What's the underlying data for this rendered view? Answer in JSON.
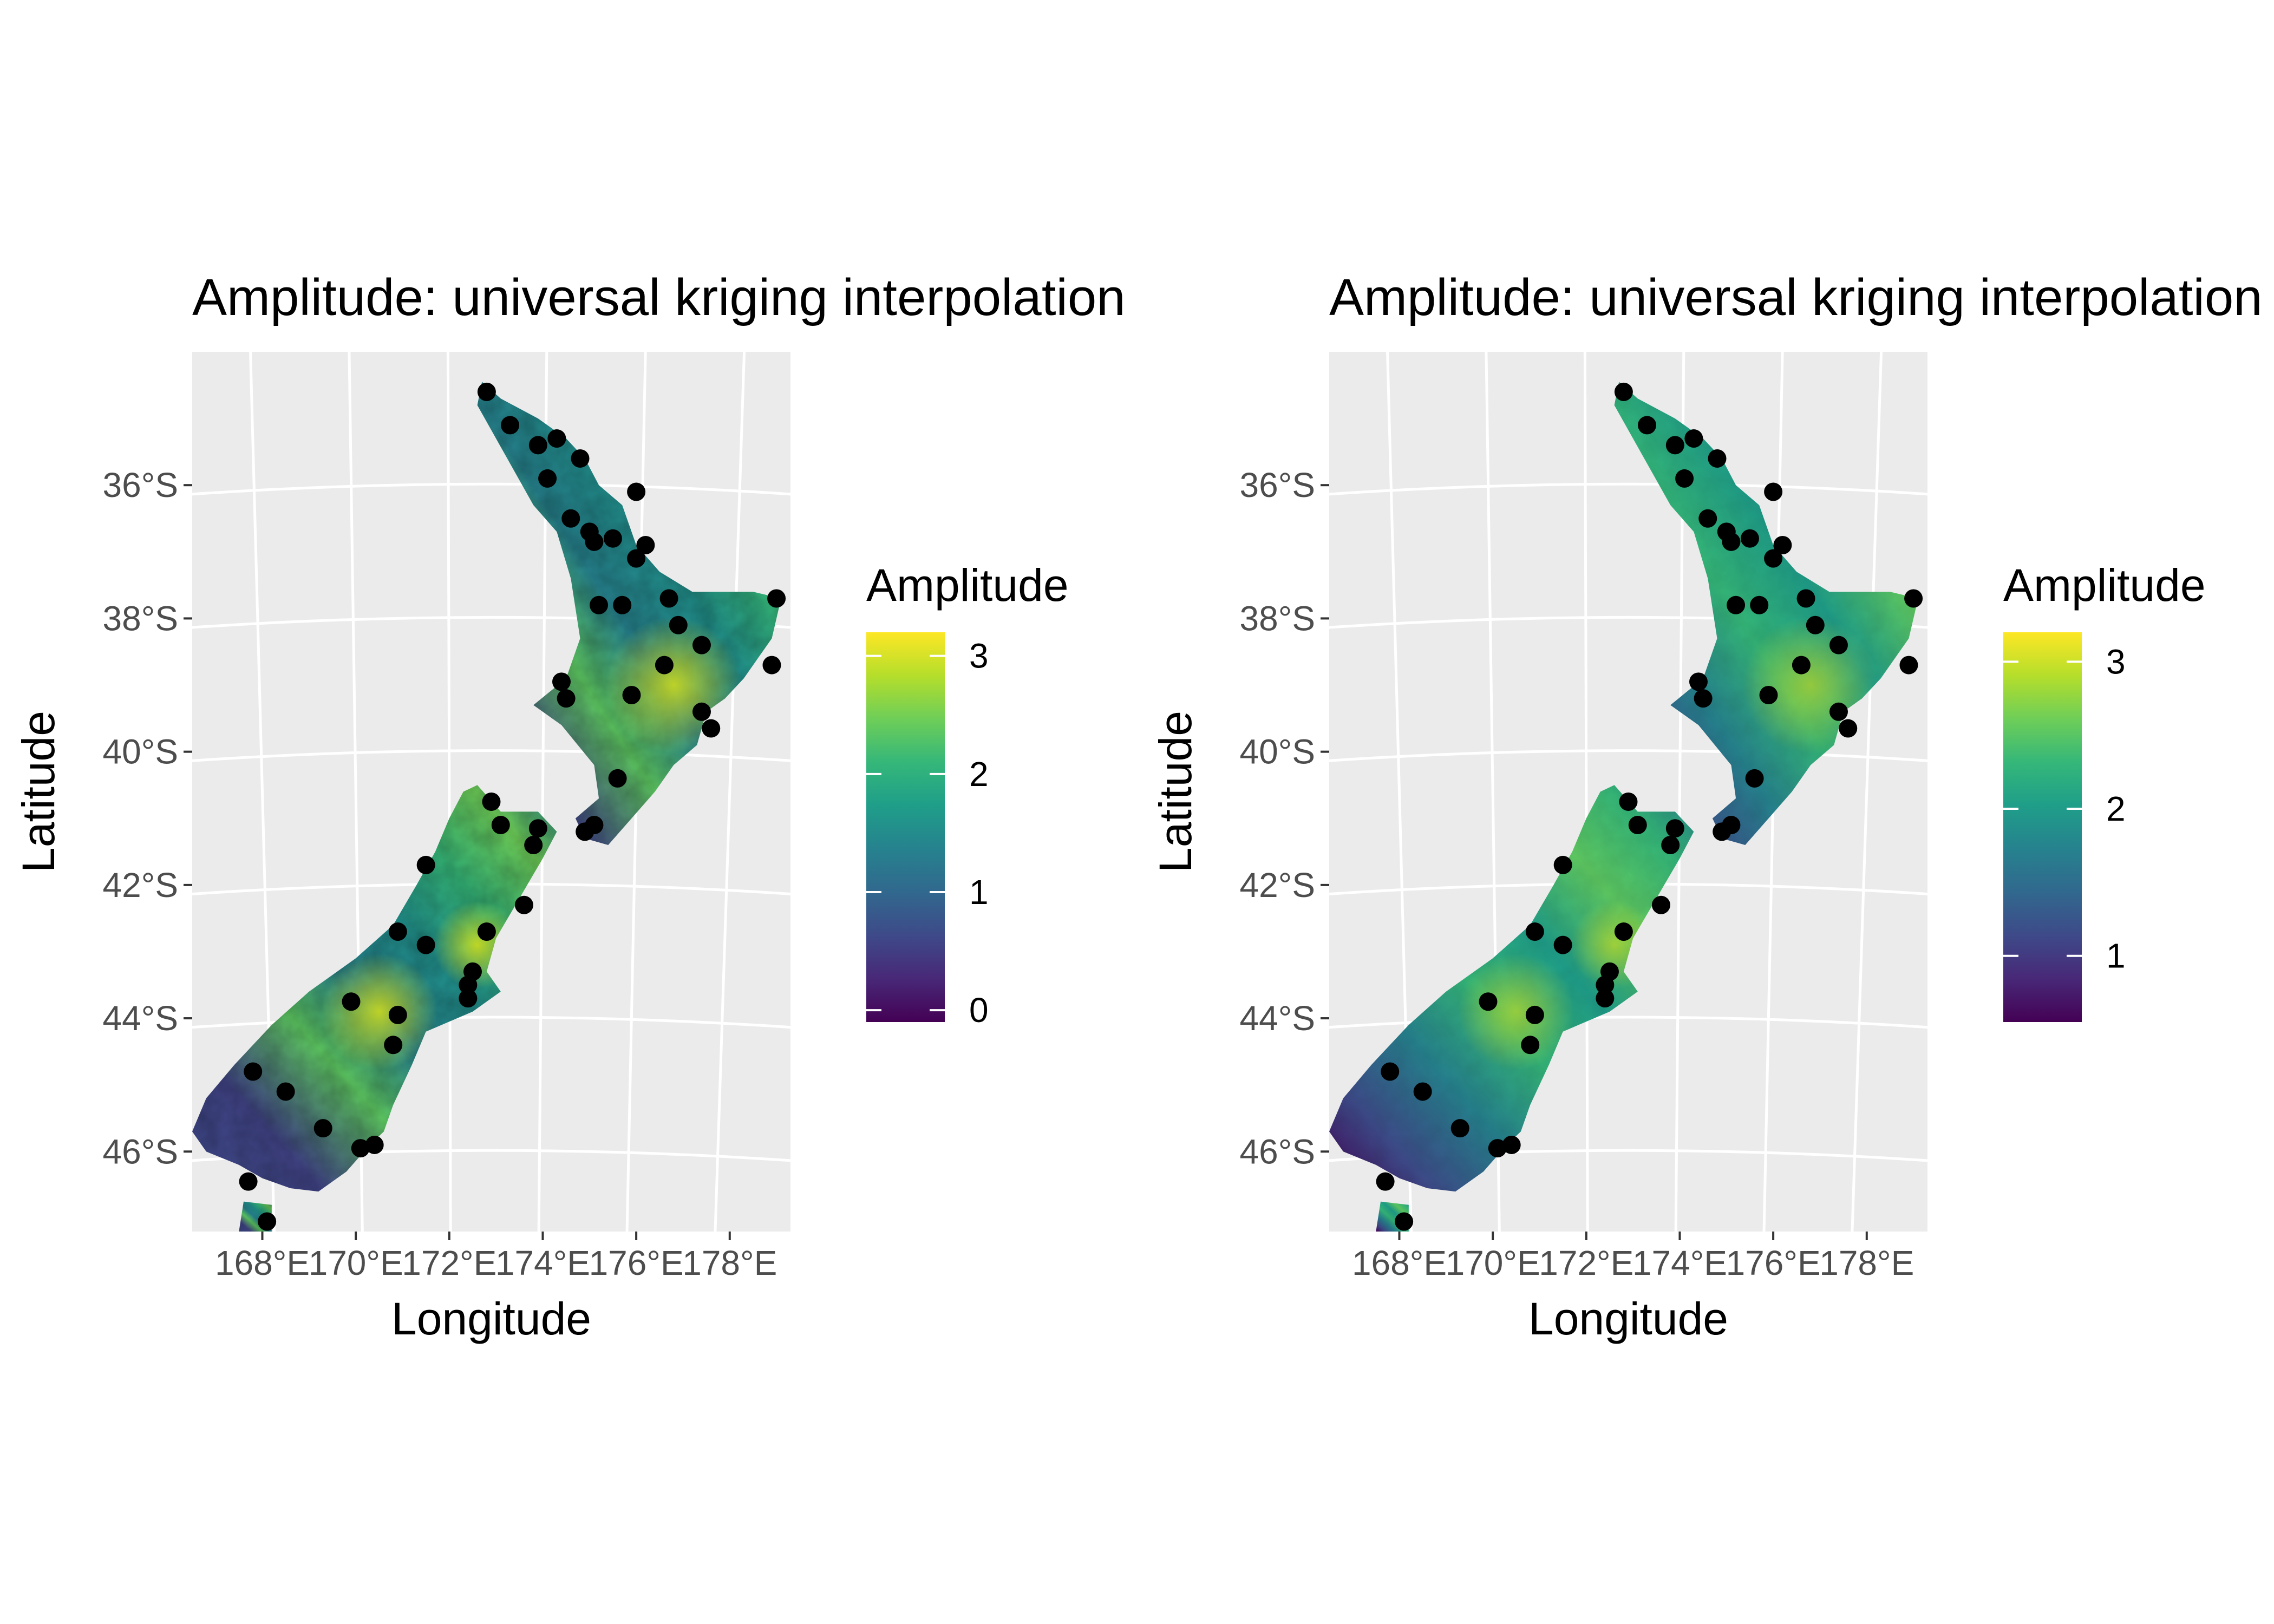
{
  "panels": [
    {
      "title": "Amplitude: universal kriging interpolation",
      "xlabel": "Longitude",
      "ylabel": "Latitude",
      "x_ticks": [
        "168°E",
        "170°E",
        "172°E",
        "174°E",
        "176°E",
        "178°E"
      ],
      "y_ticks": [
        "36°S",
        "38°S",
        "40°S",
        "42°S",
        "44°S",
        "46°S"
      ],
      "legend": {
        "title": "Amplitude",
        "min": -0.1,
        "max": 3.2,
        "ticks": [
          0,
          1,
          2,
          3
        ]
      },
      "surface_mode": "variable"
    },
    {
      "title": "Amplitude: universal kriging interpolation",
      "xlabel": "Longitude",
      "ylabel": "Latitude",
      "x_ticks": [
        "168°E",
        "170°E",
        "172°E",
        "174°E",
        "176°E",
        "178°E"
      ],
      "y_ticks": [
        "36°S",
        "38°S",
        "40°S",
        "42°S",
        "44°S",
        "46°S"
      ],
      "legend": {
        "title": "Amplitude",
        "min": 0.55,
        "max": 3.2,
        "ticks": [
          1,
          2,
          3
        ]
      },
      "surface_mode": "smooth"
    }
  ],
  "colors": {
    "panel_background": "#ebebeb",
    "gridline": "#ffffff",
    "station_point": "#000000",
    "viridis": [
      "#440154",
      "#482878",
      "#3e4a89",
      "#31688e",
      "#26828e",
      "#1f9e89",
      "#35b779",
      "#6ece58",
      "#b5de2b",
      "#fde725"
    ]
  },
  "chart_data": {
    "type": "scatter",
    "x_range": [
      166.5,
      179.3
    ],
    "y_range": [
      -47.2,
      -34.0
    ],
    "stations": [
      {
        "lon": 172.8,
        "lat": -34.6
      },
      {
        "lon": 173.3,
        "lat": -35.1
      },
      {
        "lon": 173.9,
        "lat": -35.4
      },
      {
        "lon": 174.3,
        "lat": -35.3
      },
      {
        "lon": 174.8,
        "lat": -35.6
      },
      {
        "lon": 174.1,
        "lat": -35.9
      },
      {
        "lon": 176.0,
        "lat": -36.1
      },
      {
        "lon": 174.6,
        "lat": -36.5
      },
      {
        "lon": 175.0,
        "lat": -36.7
      },
      {
        "lon": 175.5,
        "lat": -36.8
      },
      {
        "lon": 175.1,
        "lat": -36.85
      },
      {
        "lon": 176.2,
        "lat": -36.9
      },
      {
        "lon": 176.0,
        "lat": -37.1
      },
      {
        "lon": 176.7,
        "lat": -37.7
      },
      {
        "lon": 175.2,
        "lat": -37.8
      },
      {
        "lon": 175.7,
        "lat": -37.8
      },
      {
        "lon": 179.0,
        "lat": -37.7
      },
      {
        "lon": 176.9,
        "lat": -38.1
      },
      {
        "lon": 177.4,
        "lat": -38.4
      },
      {
        "lon": 176.6,
        "lat": -38.7
      },
      {
        "lon": 178.9,
        "lat": -38.7
      },
      {
        "lon": 174.4,
        "lat": -38.95
      },
      {
        "lon": 174.5,
        "lat": -39.2
      },
      {
        "lon": 175.9,
        "lat": -39.15
      },
      {
        "lon": 177.4,
        "lat": -39.4
      },
      {
        "lon": 177.6,
        "lat": -39.65
      },
      {
        "lon": 175.6,
        "lat": -40.4
      },
      {
        "lon": 172.9,
        "lat": -40.75
      },
      {
        "lon": 173.1,
        "lat": -41.1
      },
      {
        "lon": 175.1,
        "lat": -41.1
      },
      {
        "lon": 174.9,
        "lat": -41.2
      },
      {
        "lon": 173.9,
        "lat": -41.15
      },
      {
        "lon": 173.8,
        "lat": -41.4
      },
      {
        "lon": 171.5,
        "lat": -41.7
      },
      {
        "lon": 173.6,
        "lat": -42.3
      },
      {
        "lon": 170.9,
        "lat": -42.7
      },
      {
        "lon": 172.8,
        "lat": -42.7
      },
      {
        "lon": 171.5,
        "lat": -42.9
      },
      {
        "lon": 172.5,
        "lat": -43.3
      },
      {
        "lon": 172.4,
        "lat": -43.5
      },
      {
        "lon": 172.4,
        "lat": -43.7
      },
      {
        "lon": 169.9,
        "lat": -43.75
      },
      {
        "lon": 170.9,
        "lat": -43.95
      },
      {
        "lon": 170.8,
        "lat": -44.4
      },
      {
        "lon": 167.8,
        "lat": -44.8
      },
      {
        "lon": 168.5,
        "lat": -45.1
      },
      {
        "lon": 169.3,
        "lat": -45.65
      },
      {
        "lon": 170.4,
        "lat": -45.9
      },
      {
        "lon": 170.1,
        "lat": -45.95
      },
      {
        "lon": 167.7,
        "lat": -46.45
      },
      {
        "lon": 168.1,
        "lat": -47.05
      }
    ]
  }
}
